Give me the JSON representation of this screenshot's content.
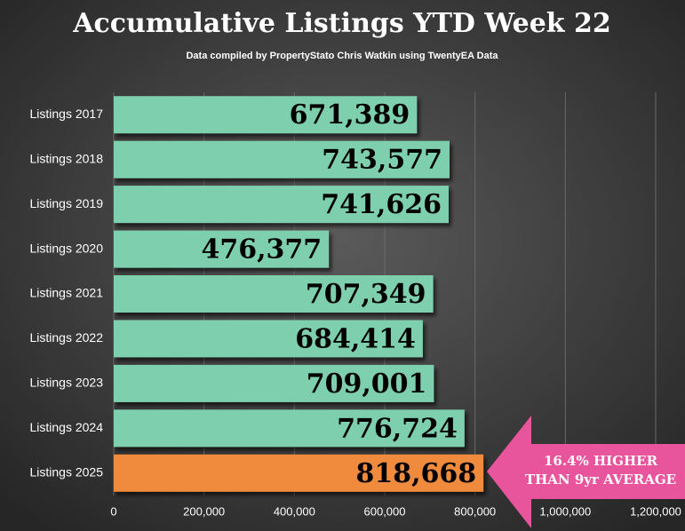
{
  "chart_data": {
    "type": "barh",
    "title": "Accumulative Listings YTD Week 22",
    "subtitle": "Data compiled by PropertyStato Chris Watkin using TwentyEA Data",
    "categories": [
      "Listings 2017",
      "Listings 2018",
      "Listings 2019",
      "Listings 2020",
      "Listings 2021",
      "Listings 2022",
      "Listings 2023",
      "Listings 2024",
      "Listings 2025"
    ],
    "values": [
      671389,
      743577,
      741626,
      476377,
      707349,
      684414,
      709001,
      776724,
      818668
    ],
    "value_labels": [
      "671,389",
      "743,577",
      "741,626",
      "476,377",
      "707,349",
      "684,414",
      "709,001",
      "776,724",
      "818,668"
    ],
    "colors": [
      "#7dcfae",
      "#7dcfae",
      "#7dcfae",
      "#7dcfae",
      "#7dcfae",
      "#7dcfae",
      "#7dcfae",
      "#7dcfae",
      "#f08a3c"
    ],
    "xlim": [
      0,
      1200000
    ],
    "xticks": [
      0,
      {
        "value": 200000,
        "label": "200,000"
      },
      {
        "value": 400000,
        "label": "400,000"
      },
      {
        "value": 600000,
        "label": "600,000"
      },
      {
        "value": 800000,
        "label": "800,000"
      },
      {
        "value": 1000000,
        "label": "1,000,000"
      },
      {
        "value": 1200000,
        "label": "1,200,000"
      }
    ],
    "grid": true,
    "annotation": [
      "16.4% HIGHER",
      "THAN 9yr AVERAGE"
    ]
  }
}
